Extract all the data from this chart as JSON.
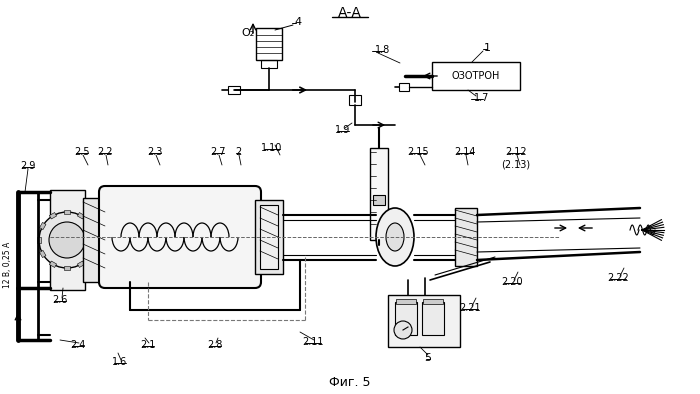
{
  "title": "А-А",
  "subtitle": "Фиг. 5",
  "bg_color": "#ffffff",
  "fig_width": 7.0,
  "fig_height": 3.94,
  "labels": {
    "AA": "А-А",
    "O2": "О₂",
    "4": "4",
    "1.8": "1.8",
    "1": "1",
    "OZON": "ОЗОТРОН",
    "1.7": "1.7",
    "1.9": "1.9",
    "1.10": "1.10",
    "2.5": "2.5",
    "2.2": "2.2",
    "2.3": "2.3",
    "2.7": "2.7",
    "2": "2",
    "2.9": "2.9",
    "12V": "12 В, 0,25 А",
    "2.6": "2.6",
    "2.4": "2.4",
    "2.1": "2.1",
    "2.8": "2.8",
    "2.11": "2.11",
    "1.6": "1.6",
    "2.15": "2.15",
    "2.14": "2.14",
    "2.12": "2.12",
    "2.13": "(2.13)",
    "2.20": "2.20",
    "2.21": "2.21",
    "5": "5",
    "2.22": "2.22",
    "fig5": "Фиг. 5"
  },
  "text_color": "#000000",
  "line_color": "#000000"
}
